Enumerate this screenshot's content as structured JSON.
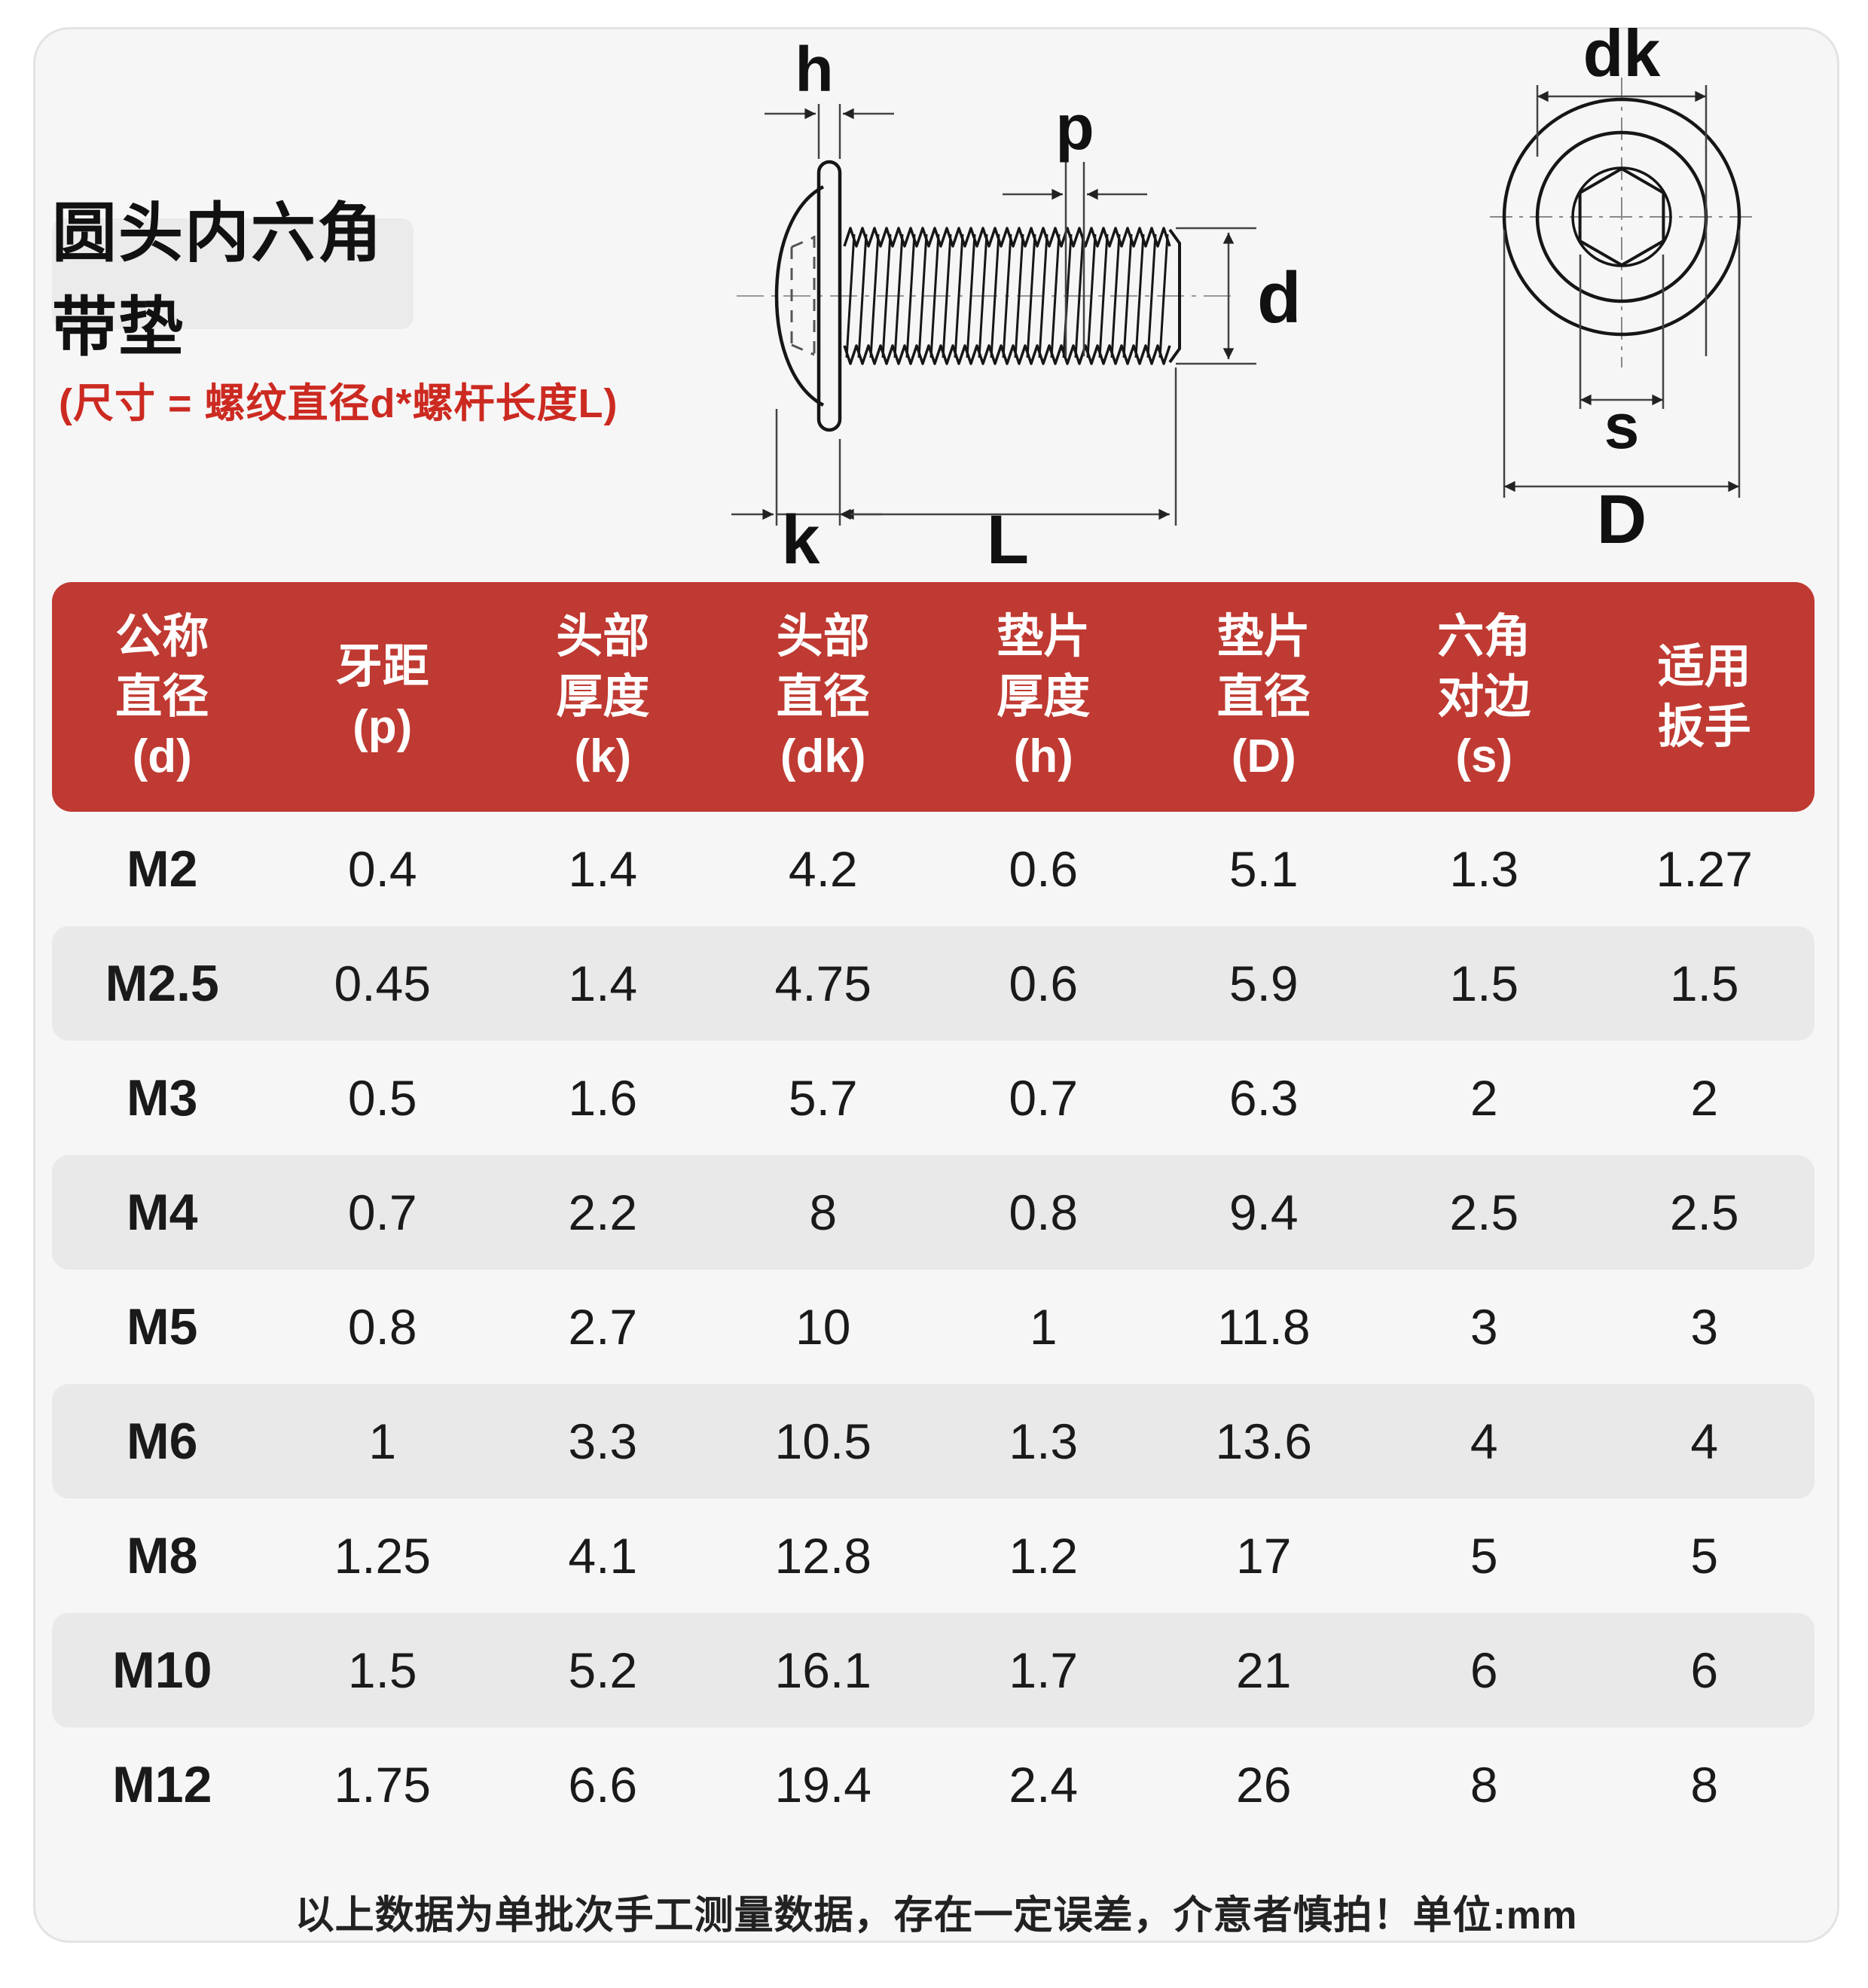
{
  "card": {
    "title": "圆头内六角带垫",
    "subtitle": "(尺寸 = 螺纹直径d*螺杆长度L)",
    "footer": "以上数据为单批次手工测量数据，存在一定误差，介意者慎拍！单位:mm"
  },
  "diagram": {
    "side": {
      "h": "h",
      "p": "p",
      "d": "d",
      "k": "k",
      "L": "L"
    },
    "end": {
      "dk": "dk",
      "s": "s",
      "D": "D"
    }
  },
  "colors": {
    "header_bg": "#bf3a32",
    "header_text": "#ffffff",
    "accent_red": "#cc2a21",
    "stripe": "#e9e9ea",
    "card_bg": "#f6f6f7",
    "line": "#161616"
  },
  "table": {
    "headers": [
      "公称\n直径\n(d)",
      "牙距\n(p)",
      "头部\n厚度\n(k)",
      "头部\n直径\n(dk)",
      "垫片\n厚度\n(h)",
      "垫片\n直径\n(D)",
      "六角\n对边\n(s)",
      "适用\n扳手"
    ],
    "rows": [
      [
        "M2",
        "0.4",
        "1.4",
        "4.2",
        "0.6",
        "5.1",
        "1.3",
        "1.27"
      ],
      [
        "M2.5",
        "0.45",
        "1.4",
        "4.75",
        "0.6",
        "5.9",
        "1.5",
        "1.5"
      ],
      [
        "M3",
        "0.5",
        "1.6",
        "5.7",
        "0.7",
        "6.3",
        "2",
        "2"
      ],
      [
        "M4",
        "0.7",
        "2.2",
        "8",
        "0.8",
        "9.4",
        "2.5",
        "2.5"
      ],
      [
        "M5",
        "0.8",
        "2.7",
        "10",
        "1",
        "11.8",
        "3",
        "3"
      ],
      [
        "M6",
        "1",
        "3.3",
        "10.5",
        "1.3",
        "13.6",
        "4",
        "4"
      ],
      [
        "M8",
        "1.25",
        "4.1",
        "12.8",
        "1.2",
        "17",
        "5",
        "5"
      ],
      [
        "M10",
        "1.5",
        "5.2",
        "16.1",
        "1.7",
        "21",
        "6",
        "6"
      ],
      [
        "M12",
        "1.75",
        "6.6",
        "19.4",
        "2.4",
        "26",
        "8",
        "8"
      ]
    ]
  }
}
